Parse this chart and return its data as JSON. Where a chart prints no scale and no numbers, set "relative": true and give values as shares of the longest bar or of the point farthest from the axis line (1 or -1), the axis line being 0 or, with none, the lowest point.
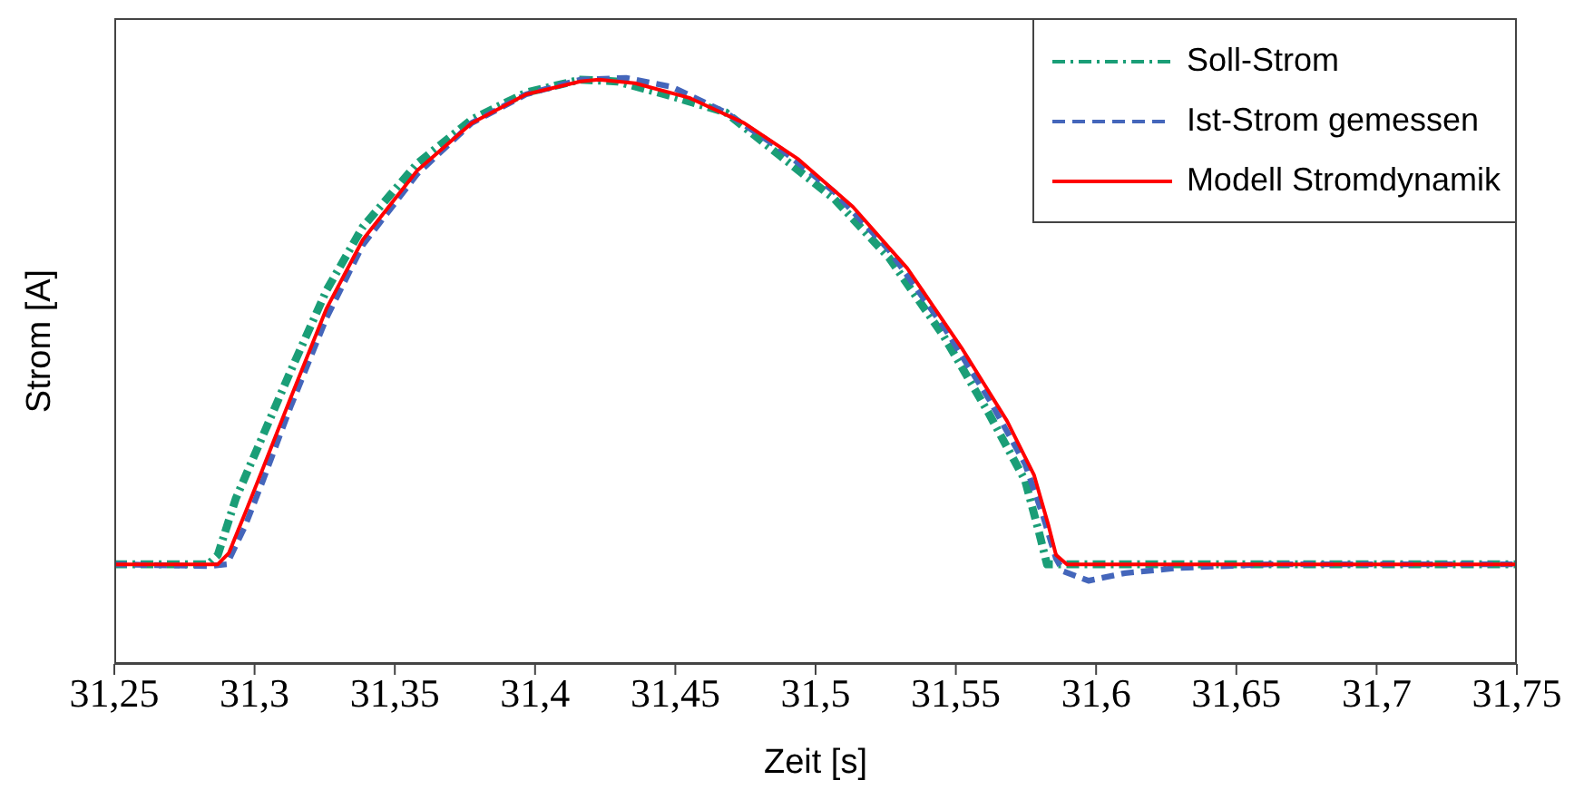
{
  "chart_data": {
    "type": "line",
    "xlabel": "Zeit [s]",
    "ylabel": "Strom [A]",
    "relative": true,
    "legend": "top right",
    "grid": false,
    "xlim": [
      31.25,
      31.75
    ],
    "xticks": [
      {
        "value": 31.25,
        "label": "31,25"
      },
      {
        "value": 31.3,
        "label": "31,3"
      },
      {
        "value": 31.35,
        "label": "31,35"
      },
      {
        "value": 31.4,
        "label": "31,4"
      },
      {
        "value": 31.45,
        "label": "31,45"
      },
      {
        "value": 31.5,
        "label": "31,5"
      },
      {
        "value": 31.55,
        "label": "31,55"
      },
      {
        "value": 31.6,
        "label": "31,6"
      },
      {
        "value": 31.65,
        "label": "31,65"
      },
      {
        "value": 31.7,
        "label": "31,7"
      },
      {
        "value": 31.75,
        "label": "31,75"
      }
    ],
    "series": [
      {
        "name": "Soll-Strom",
        "color": "#1a9e77",
        "line_style": "dashdot",
        "x": [
          31.25,
          31.2836,
          31.2869,
          31.2933,
          31.303,
          31.3127,
          31.3257,
          31.3386,
          31.358,
          31.3774,
          31.3968,
          31.4162,
          31.4292,
          31.4486,
          31.468,
          31.4874,
          31.5068,
          31.5262,
          31.5456,
          31.5618,
          31.5747,
          31.5799,
          31.5825,
          31.75
        ],
        "values": [
          0.17,
          0.17,
          0.186,
          0.282,
          0.39,
          0.498,
          0.638,
          0.746,
          0.854,
          0.929,
          0.975,
          0.997,
          0.994,
          0.969,
          0.941,
          0.867,
          0.793,
          0.693,
          0.56,
          0.427,
          0.313,
          0.22,
          0.17,
          0.17
        ]
      },
      {
        "name": "Ist-Strom gemessen",
        "color": "#4466bb",
        "line_style": "dashed",
        "x": [
          31.25,
          31.2836,
          31.2901,
          31.2966,
          31.303,
          31.3127,
          31.3257,
          31.3386,
          31.358,
          31.3774,
          31.3968,
          31.4162,
          31.4324,
          31.4486,
          31.468,
          31.4874,
          31.5068,
          31.5262,
          31.5456,
          31.5618,
          31.5747,
          31.5812,
          31.5857,
          31.5883,
          31.5973,
          31.6103,
          31.6297,
          31.662,
          31.75
        ],
        "values": [
          0.17,
          0.167,
          0.17,
          0.235,
          0.313,
          0.437,
          0.591,
          0.715,
          0.836,
          0.923,
          0.972,
          0.997,
          1.0,
          0.985,
          0.941,
          0.879,
          0.805,
          0.706,
          0.576,
          0.452,
          0.341,
          0.251,
          0.18,
          0.158,
          0.142,
          0.155,
          0.164,
          0.17,
          0.17
        ]
      },
      {
        "name": "Modell Stromdynamik",
        "color": "#ff0000",
        "line_style": "solid",
        "x": [
          31.25,
          31.2869,
          31.2908,
          31.2966,
          31.303,
          31.3127,
          31.3257,
          31.3386,
          31.358,
          31.3774,
          31.3968,
          31.4162,
          31.4227,
          31.4356,
          31.455,
          31.4745,
          31.4939,
          31.5133,
          31.5327,
          31.5521,
          31.5682,
          31.5779,
          31.5831,
          31.5857,
          31.5896,
          31.5973,
          31.75
        ],
        "values": [
          0.17,
          0.17,
          0.189,
          0.257,
          0.334,
          0.452,
          0.607,
          0.724,
          0.842,
          0.923,
          0.972,
          0.994,
          0.997,
          0.991,
          0.966,
          0.923,
          0.861,
          0.78,
          0.675,
          0.539,
          0.415,
          0.322,
          0.235,
          0.186,
          0.17,
          0.17,
          0.17
        ]
      }
    ]
  }
}
